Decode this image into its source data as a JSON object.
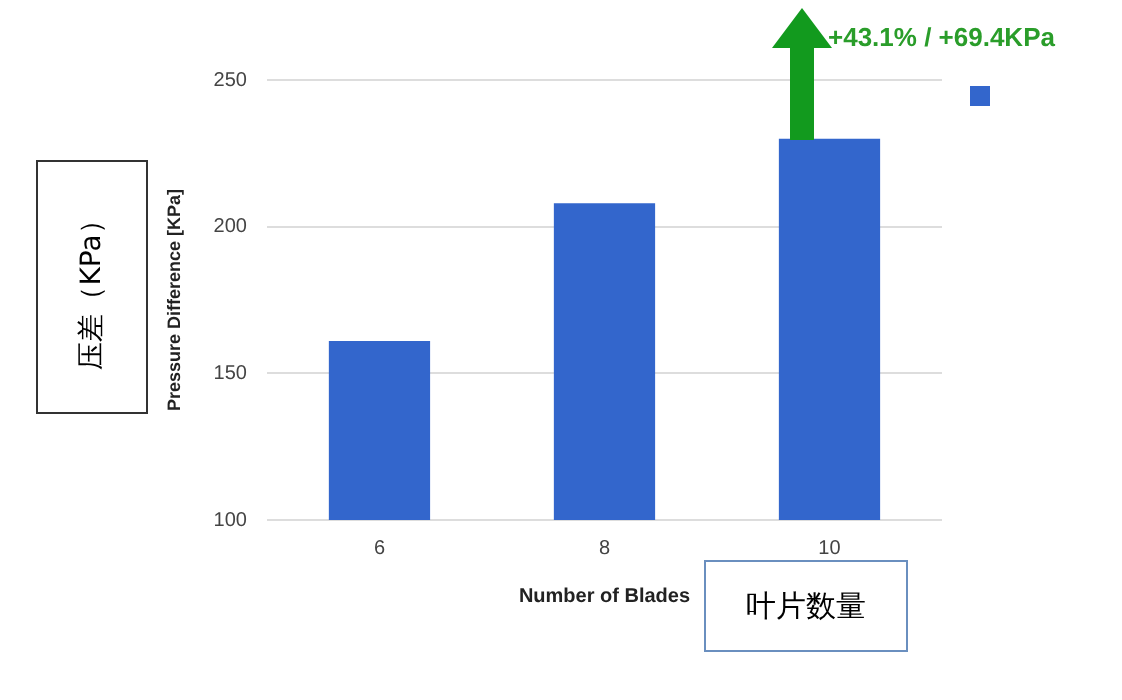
{
  "chart_data": {
    "type": "bar",
    "xlabel": "Number of Blades",
    "ylabel": "Pressure Difference [KPa]",
    "categories": [
      "6",
      "8",
      "10"
    ],
    "series": [
      {
        "color": "#3366cc",
        "values": [
          161,
          208,
          230
        ]
      }
    ],
    "ylim": [
      100,
      250
    ],
    "yticks": [
      100,
      150,
      200,
      250
    ],
    "grid": "y",
    "annotations": [
      "+43.1% / +69.4KPa",
      "压差（KPa）",
      "叶片数量"
    ]
  }
}
